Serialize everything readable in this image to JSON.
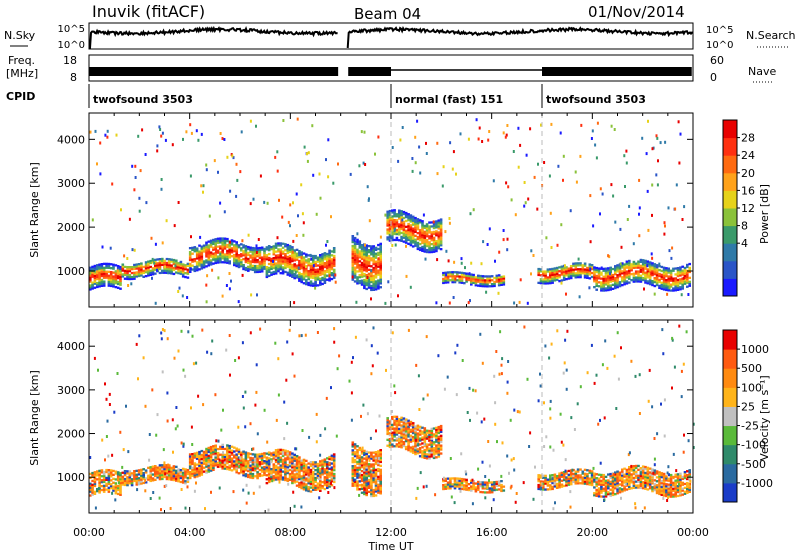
{
  "header": {
    "station": "Inuvik (fitACF)",
    "beam": "Beam 04",
    "date": "01/Nov/2014"
  },
  "top_panels": {
    "nsky_label": "N.Sky",
    "nsky_ticks": [
      "10^5",
      "10^0"
    ],
    "nsearch_ticks": [
      "10^5",
      "10^0"
    ],
    "nsearch_label": "N.Search",
    "freq_label_1": "Freq.",
    "freq_label_2": "[MHz]",
    "freq_ticks": [
      "18",
      "8"
    ],
    "nave_ticks": [
      "60",
      "0"
    ],
    "nave_label": "Nave",
    "cpid_label": "CPID",
    "cpid_segments": [
      {
        "name": "twofsound 3503",
        "start_h": 0,
        "end_h": 12
      },
      {
        "name": "normal (fast) 151",
        "start_h": 12,
        "end_h": 18
      },
      {
        "name": "twofsound 3503",
        "start_h": 18,
        "end_h": 24
      }
    ]
  },
  "x_axis": {
    "label": "Time UT",
    "ticks": [
      "00:00",
      "04:00",
      "08:00",
      "12:00",
      "16:00",
      "20:00",
      "00:00"
    ]
  },
  "power_panel": {
    "ylabel": "Slant Range [km]",
    "yticks": [
      "4000",
      "3000",
      "2000",
      "1000"
    ],
    "colorbar_label": "Power [dB]",
    "colorbar_ticks": [
      "28",
      "24",
      "20",
      "16",
      "12",
      "8",
      "4"
    ],
    "colors": [
      "#1a1aff",
      "#2a55c8",
      "#2f7aa8",
      "#3a9a6a",
      "#8ac23a",
      "#e6d21a",
      "#ffa21a",
      "#ff6a10",
      "#ff3010",
      "#e80000"
    ]
  },
  "velocity_panel": {
    "ylabel": "Slant Range [km]",
    "yticks": [
      "4000",
      "3000",
      "2000",
      "1000"
    ],
    "colorbar_label": "Velocity [m s⁻¹]",
    "colorbar_ticks": [
      "1000",
      "500",
      "100",
      "25",
      "-25",
      "-100",
      "-500",
      "-1000"
    ],
    "colors": [
      "#1a3cc8",
      "#2a6aa0",
      "#2f8a6a",
      "#5aba3a",
      "#c0c0c0",
      "#ffb41a",
      "#ff8a10",
      "#ff5a10",
      "#e80000"
    ]
  },
  "chart_data": {
    "type": "heatmap",
    "x_range_hours": [
      0,
      24
    ],
    "y_range_km": [
      180,
      4600
    ],
    "bands": [
      {
        "start_h": 0.0,
        "end_h": 1.3,
        "center_km": 800,
        "halfwidth_km": 250
      },
      {
        "start_h": 1.3,
        "end_h": 4.0,
        "center_km": 1050,
        "halfwidth_km": 180
      },
      {
        "start_h": 4.0,
        "end_h": 7.0,
        "center_km": 1350,
        "halfwidth_km": 280
      },
      {
        "start_h": 7.0,
        "end_h": 9.8,
        "center_km": 1150,
        "halfwidth_km": 360
      },
      {
        "start_h": 10.4,
        "end_h": 11.6,
        "center_km": 1250,
        "halfwidth_km": 500
      },
      {
        "start_h": 11.8,
        "end_h": 14.0,
        "center_km": 1900,
        "halfwidth_km": 350
      },
      {
        "start_h": 14.0,
        "end_h": 16.5,
        "center_km": 800,
        "halfwidth_km": 120
      },
      {
        "start_h": 17.8,
        "end_h": 20.0,
        "center_km": 950,
        "halfwidth_km": 180
      },
      {
        "start_h": 20.0,
        "end_h": 23.9,
        "center_km": 900,
        "halfwidth_km": 260
      }
    ],
    "data_gap_hours": [
      9.9,
      10.3
    ]
  }
}
